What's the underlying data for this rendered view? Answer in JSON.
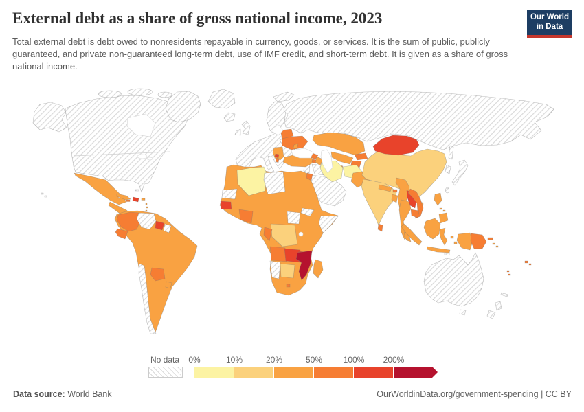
{
  "header": {
    "title": "External debt as a share of gross national income, 2023",
    "subtitle": "Total external debt is debt owed to nonresidents repayable in currency, goods, or services. It is the sum of public, publicly guaranteed, and private non-guaranteed long-term debt, use of IMF credit, and short-term debt. It is given as a share of gross national income.",
    "logo": {
      "line1": "Our World",
      "line2": "in Data"
    }
  },
  "legend": {
    "no_data_label": "No data",
    "tick_labels": [
      "0%",
      "10%",
      "20%",
      "50%",
      "100%",
      "200%"
    ],
    "bin_colors": [
      "#FCF3A3",
      "#FBD17C",
      "#F9A242",
      "#F67D33",
      "#E8432B",
      "#B5122E"
    ]
  },
  "footer": {
    "datasource_label": "Data source:",
    "datasource_value": " World Bank",
    "right_text": "OurWorldinData.org/government-spending | CC BY"
  },
  "chart_data": {
    "type": "heatmap",
    "map_type": "world-choropleth",
    "title": "External debt as a share of gross national income, 2023",
    "unit": "% of gross national income",
    "year": 2023,
    "source": "World Bank",
    "legend_bins": [
      {
        "range": "0-10%",
        "color": "#FCF3A3"
      },
      {
        "range": "10-20%",
        "color": "#FBD17C"
      },
      {
        "range": "20-50%",
        "color": "#F9A242"
      },
      {
        "range": "50-100%",
        "color": "#F67D33"
      },
      {
        "range": "100-200%",
        "color": "#E8432B"
      },
      {
        "range": "200%+",
        "color": "#B5122E"
      }
    ],
    "no_data_style": "gray diagonal hatching",
    "regions_by_bin": {
      "0-10%": [
        "Algeria",
        "Iran",
        "Afghanistan"
      ],
      "10-20%": [
        "China",
        "India",
        "DR Congo",
        "Botswana"
      ],
      "20-50%": [
        "Mexico",
        "Central America",
        "Brazil",
        "Peru",
        "Bolivia",
        "Argentina",
        "Uruguay",
        "Morocco",
        "Egypt",
        "Mali",
        "Niger",
        "Chad",
        "Sudan",
        "Nigeria",
        "Ethiopia",
        "Kenya",
        "Tanzania",
        "South Africa",
        "Madagascar",
        "Turkey",
        "Kazakhstan",
        "Uzbekistan",
        "Turkmenistan",
        "Pakistan",
        "Myanmar",
        "Thailand",
        "Indonesia",
        "Philippines"
      ],
      "50-100%": [
        "Colombia",
        "Ecuador",
        "Paraguay",
        "Côte d'Ivoire",
        "Ghana",
        "Congo",
        "Angola",
        "Ukraine",
        "Belarus",
        "Georgia",
        "Armenia",
        "Kyrgyzstan",
        "Tajikistan",
        "Bhutan",
        "Sri Lanka",
        "Vietnam",
        "Cambodia",
        "Papua New Guinea",
        "Fiji",
        "Albania",
        "Jordan"
      ],
      "100-200%": [
        "Senegal",
        "Suriname",
        "Haiti",
        "Montenegro",
        "Zambia",
        "Malawi",
        "Laos",
        "Mongolia"
      ],
      "200%+": [
        "Mozambique"
      ],
      "no_data": [
        "United States",
        "Canada",
        "Greenland",
        "Western Europe",
        "Russia",
        "Saudi Arabia",
        "Iraq",
        "Libya",
        "Venezuela",
        "Chile",
        "Somalia",
        "Eritrea",
        "South Sudan",
        "Namibia",
        "Japan",
        "South Korea",
        "Australia",
        "New Zealand"
      ]
    }
  },
  "map": {
    "palette": {
      "c1": "#FCF3A3",
      "c2": "#FBD17C",
      "c3": "#F9A242",
      "c4": "#F67D33",
      "c5": "#E8432B",
      "c6": "#B5122E"
    },
    "regions": {
      "alaska": "nodata",
      "north-america": "nodata",
      "greenland": "nodata",
      "arctic-islands-a": "nodata",
      "arctic-islands-b": "nodata",
      "arctic-islands-c": "nodata",
      "svalbard": "nodata",
      "novaya-zemlya": "nodata",
      "iceland": "nodata",
      "uk": "nodata",
      "ireland": "nodata",
      "europe": "nodata",
      "scandinavia": "nodata",
      "russia": "nodata",
      "sakhalin": "nodata",
      "japan": "nodata",
      "korea": "nodata",
      "taiwan": "nodata",
      "levant": "nodata",
      "iraq": "nodata",
      "arabian-peninsula": "nodata",
      "bahamas": "nodata",
      "hawaii": "nodata",
      "australia": "nodata",
      "tasmania": "nodata",
      "new-zealand-north": "nodata",
      "new-zealand-south": "nodata",
      "new-caledonia": "nodata",
      "timor": "nodata",
      "venezuela": "nodata",
      "french-guiana": "nodata",
      "chile": "nodata",
      "libya": "nodata",
      "western-sahara": "nodata",
      "eritrea": "nodata",
      "south-sudan": "nodata",
      "somalia": "nodata",
      "namibia": "nodata",
      "mexico": "c3",
      "central-america": "c3",
      "cuba": "c3",
      "hispaniola": "c5",
      "jamaica": "c4",
      "puerto-rico": "c3",
      "lesser-antilles": "c3",
      "trinidad": "c3",
      "south-america": "c3",
      "colombia": "c4",
      "ecuador": "c4",
      "suriname": "c5",
      "paraguay": "c4",
      "uruguay": "c3",
      "africa": "c3",
      "algeria": "c1",
      "senegal": "c5",
      "ivory-coast-ghana": "c4",
      "drc": "c2",
      "congo": "c4",
      "angola": "c4",
      "zambia": "c5",
      "malawi": "c5",
      "mozambique": "c6",
      "botswana": "c2",
      "madagascar": "c3",
      "lesotho": "c4",
      "jordan": "c4",
      "turkey": "c3",
      "georgia": "c4",
      "armenia": "c4",
      "azerbaijan": "c3",
      "ukraine": "c4",
      "belarus": "c4",
      "moldova": "c3",
      "balkans": "c3",
      "montenegro": "c5",
      "albania": "c4",
      "kazakhstan": "c3",
      "uzbekistan": "c3",
      "turkmenistan": "c3",
      "kyrgyzstan": "c4",
      "tajikistan": "c4",
      "iran": "c1",
      "afghanistan": "c1",
      "pakistan": "c3",
      "china": "c2",
      "mongolia": "c5",
      "india": "c2",
      "nepal": "c3",
      "bhutan": "c4",
      "bangladesh": "c3",
      "sri-lanka": "c4",
      "hainan": "c3",
      "myanmar": "c3",
      "thailand": "c3",
      "laos": "c5",
      "vietnam": "c4",
      "cambodia": "c4",
      "malay-peninsula": "c3",
      "sumatra": "c3",
      "java": "c3",
      "borneo": "c3",
      "sulawesi": "c3",
      "maluku": "c3",
      "papua": "c3",
      "papua-new-guinea": "c4",
      "new-britain": "c4",
      "solomon-islands": "c3",
      "vanuatu": "c4",
      "fiji": "c4",
      "philippines-luzon": "c3",
      "visayas": "c3",
      "mindanao": "c3"
    }
  }
}
